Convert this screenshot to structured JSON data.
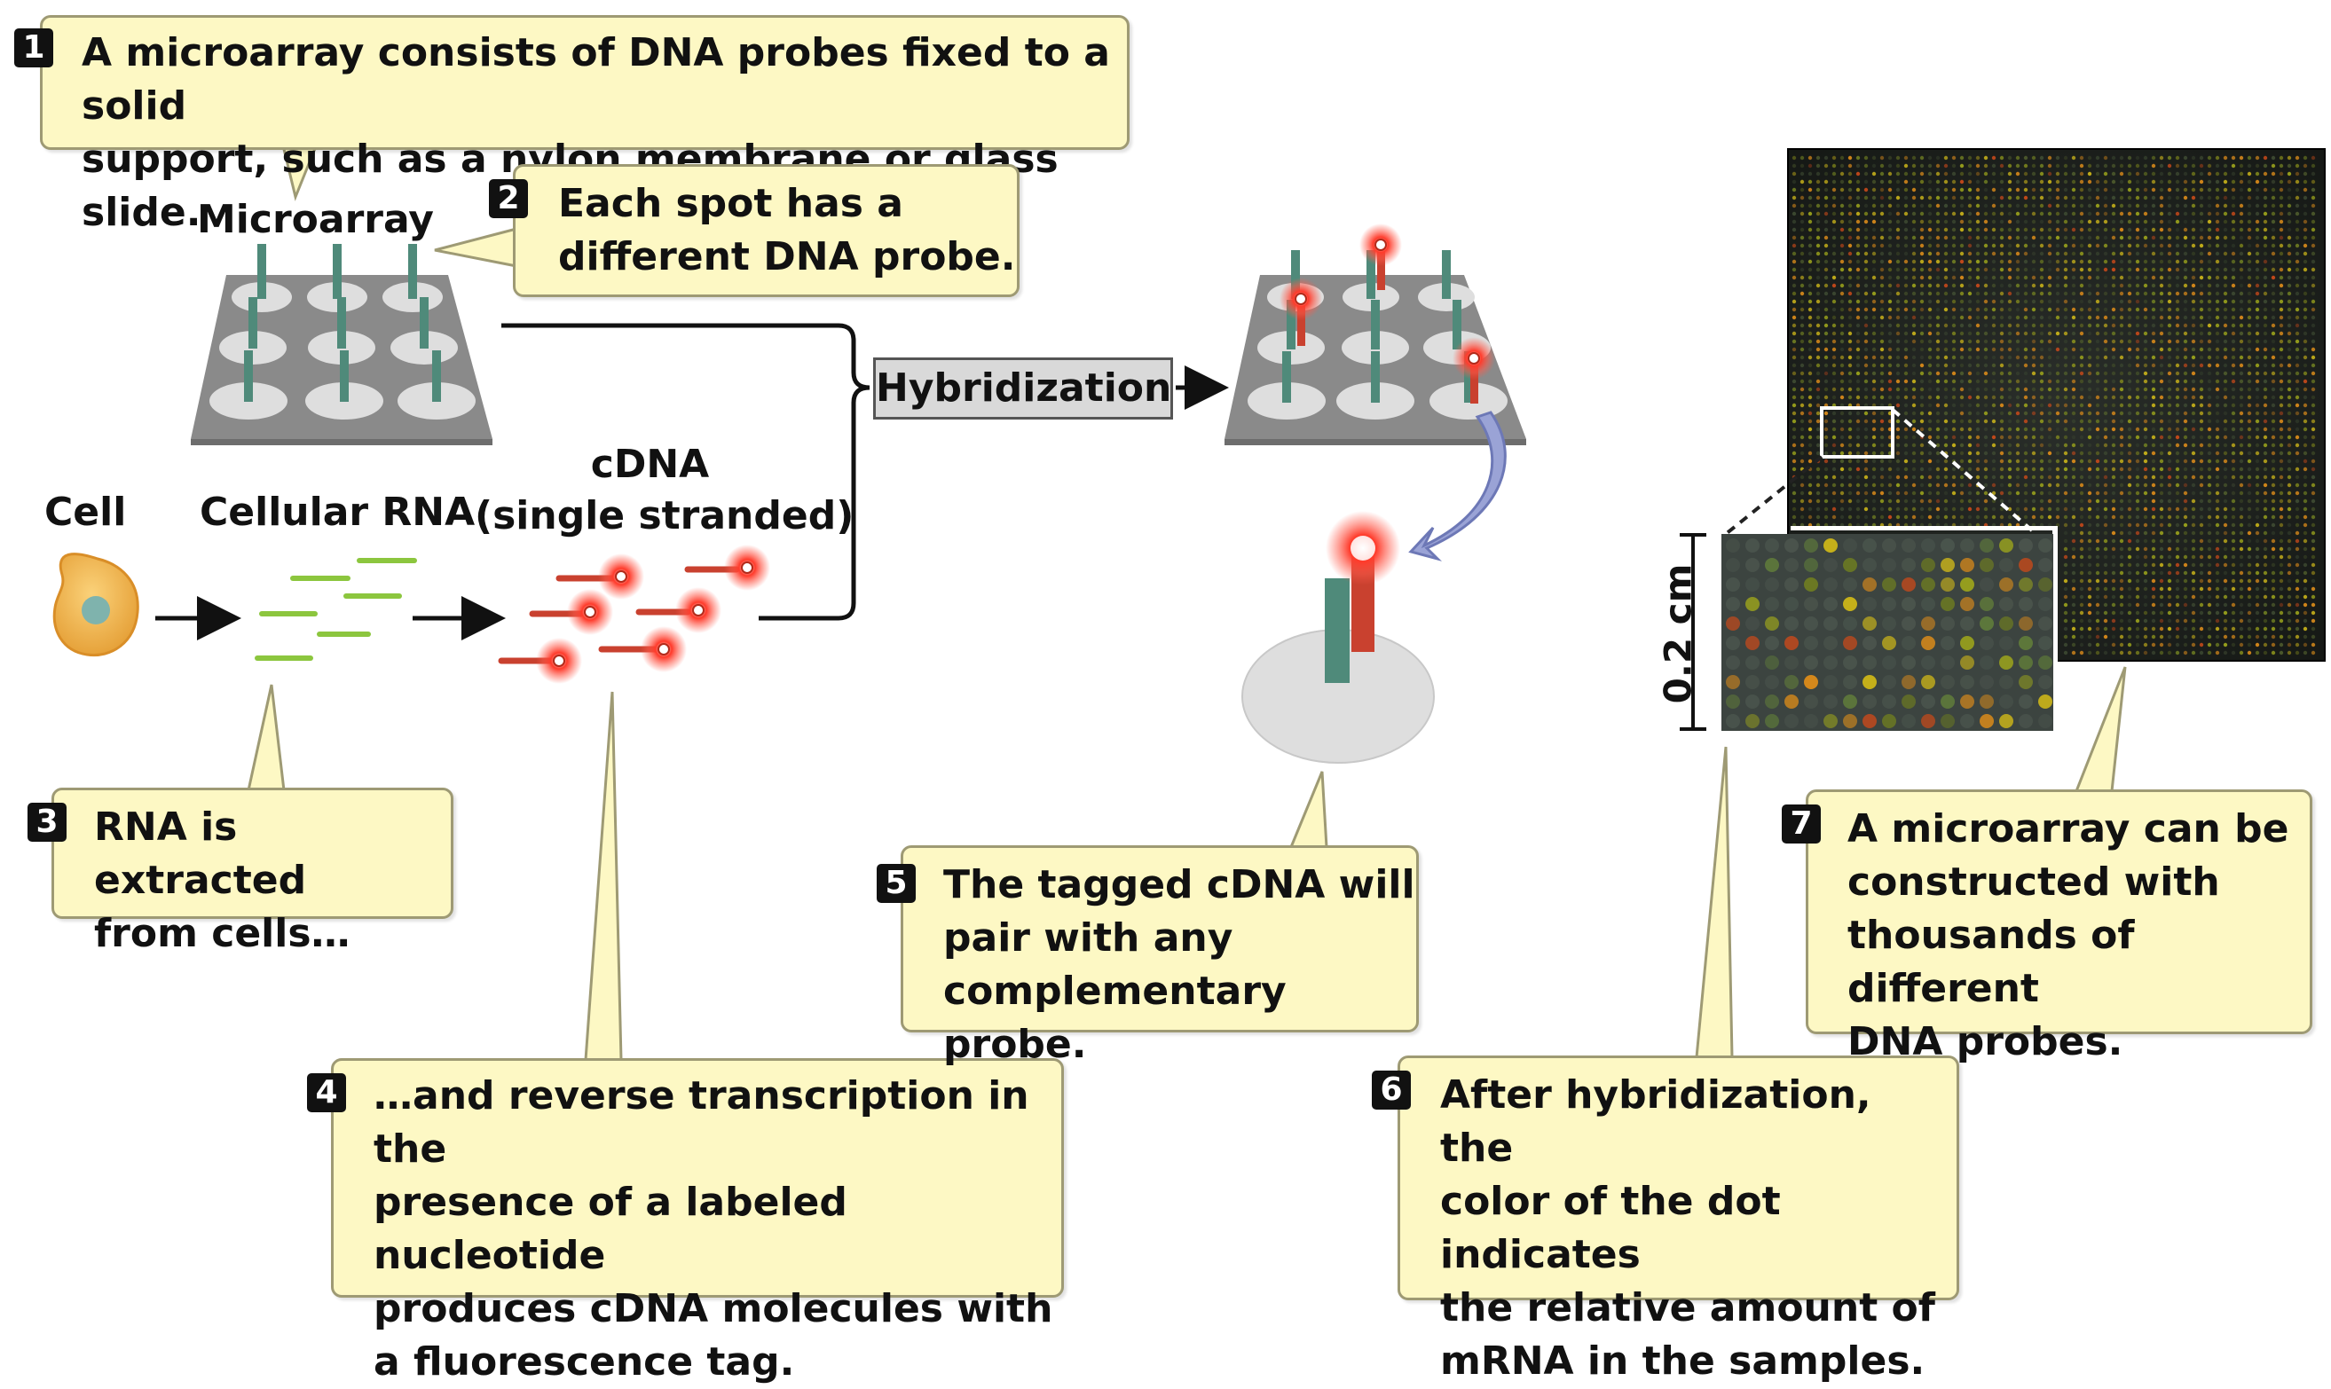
{
  "captions": [
    {
      "num": "1",
      "lines": [
        "A microarray consists of DNA probes fixed to a solid",
        "support, such as a nylon membrane or glass slide."
      ]
    },
    {
      "num": "2",
      "lines": [
        "Each spot has a",
        "different DNA probe."
      ]
    },
    {
      "num": "3",
      "lines": [
        "RNA is extracted",
        "from cells…"
      ]
    },
    {
      "num": "4",
      "lines": [
        "…and reverse transcription in the",
        "presence of a labeled nucleotide",
        "produces cDNA molecules with",
        "a fluorescence tag."
      ]
    },
    {
      "num": "5",
      "lines": [
        "The tagged cDNA will",
        "pair with any",
        "complementary probe."
      ]
    },
    {
      "num": "6",
      "lines": [
        "After hybridization, the",
        "color of the dot indicates",
        "the relative amount of",
        "mRNA in the samples."
      ]
    },
    {
      "num": "7",
      "lines": [
        "A microarray can be",
        "constructed with",
        "thousands of different",
        "DNA probes."
      ]
    }
  ],
  "labels": {
    "microarray": "Microarray",
    "cell": "Cell",
    "cellular_rna": "Cellular RNA",
    "cdna_line1": "cDNA",
    "cdna_line2": "(single stranded)",
    "hybridization": "Hybridization",
    "scale": "0.2 cm"
  },
  "colors": {
    "caption_fill": "#fdf8c4",
    "probe": "#4f8a7a",
    "cdna": "#c9412f",
    "rna": "#8cc63e",
    "cell": "#f3b84a",
    "platform": "#8a8a8a"
  }
}
